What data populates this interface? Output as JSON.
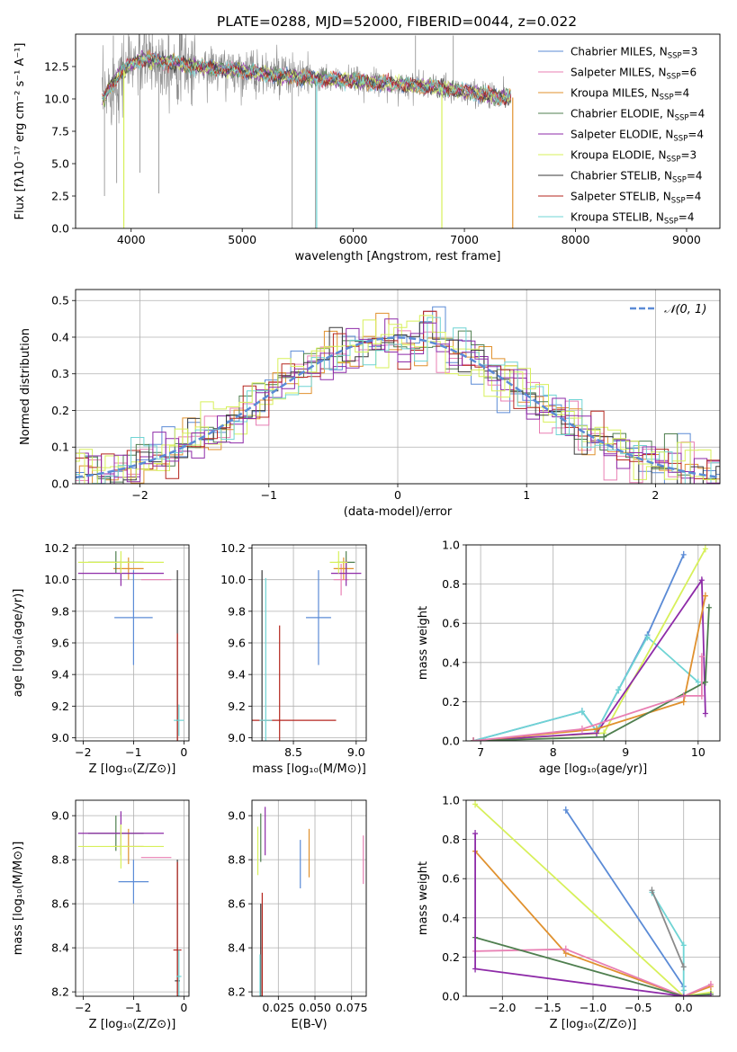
{
  "title": "PLATE=0288, MJD=52000, FIBERID=0044, z=0.022",
  "colors": {
    "chabrier_miles": "#5b8bd6",
    "salpeter_miles": "#e87fb3",
    "kroupa_miles": "#e0912e",
    "chabrier_elodie": "#4f7f4f",
    "salpeter_elodie": "#8e2ba8",
    "kroupa_elodie": "#d7f05a",
    "chabrier_stelib": "#3a3a3a",
    "salpeter_stelib": "#b5261e",
    "kroupa_stelib": "#6fd4d4",
    "data_gray": "#8a8a8a",
    "grid": "#b0b0b0"
  },
  "chart_data": [
    {
      "type": "line",
      "panel": "spectrum",
      "xlabel": "wavelength [Angstrom, rest frame]",
      "ylabel": "Flux [fλ10⁻¹⁷ erg cm⁻² s⁻¹ A⁻¹]",
      "xlim": [
        3500,
        9300
      ],
      "ylim": [
        0,
        15
      ],
      "xticks": [
        "4000",
        "5000",
        "6000",
        "7000",
        "8000",
        "9000"
      ],
      "yticks": [
        "0.0",
        "2.5",
        "5.0",
        "7.5",
        "10.0",
        "12.5"
      ],
      "legend_position": "top-right",
      "legend": [
        {
          "prefix": "Chabrier MILES, N",
          "sub": "SSP",
          "suffix": "=3",
          "color": "#5b8bd6"
        },
        {
          "prefix": "Salpeter MILES, N",
          "sub": "SSP",
          "suffix": "=6",
          "color": "#e87fb3"
        },
        {
          "prefix": "Kroupa MILES, N",
          "sub": "SSP",
          "suffix": "=4",
          "color": "#e0912e"
        },
        {
          "prefix": "Chabrier ELODIE, N",
          "sub": "SSP",
          "suffix": "=4",
          "color": "#4f7f4f"
        },
        {
          "prefix": "Salpeter ELODIE, N",
          "sub": "SSP",
          "suffix": "=4",
          "color": "#8e2ba8"
        },
        {
          "prefix": "Kroupa ELODIE, N",
          "sub": "SSP",
          "suffix": "=3",
          "color": "#d7f05a"
        },
        {
          "prefix": "Chabrier STELIB, N",
          "sub": "SSP",
          "suffix": "=4",
          "color": "#3a3a3a"
        },
        {
          "prefix": "Salpeter STELIB, N",
          "sub": "SSP",
          "suffix": "=4",
          "color": "#b5261e"
        },
        {
          "prefix": "Kroupa STELIB, N",
          "sub": "SSP",
          "suffix": "=4",
          "color": "#6fd4d4"
        }
      ],
      "model_curve": {
        "x": [
          3750,
          3800,
          3900,
          4000,
          4100,
          4300,
          4500,
          4800,
          5000,
          5300,
          5600,
          6000,
          6300,
          6600,
          7000,
          7200,
          7430
        ],
        "y": [
          9.8,
          10.8,
          12.0,
          12.7,
          13.1,
          12.9,
          12.6,
          12.3,
          12.2,
          11.8,
          11.6,
          11.4,
          11.2,
          11.0,
          10.6,
          10.3,
          10.1
        ]
      },
      "model_dips": [
        {
          "x": 3934,
          "y": 0.0,
          "series": "Kroupa ELODIE"
        },
        {
          "x": 6797,
          "y": 0.0,
          "series": "Kroupa ELODIE"
        },
        {
          "x": 7435,
          "y": 0.0,
          "series": "Salpeter MILES"
        },
        {
          "x": 5670,
          "y": 0.0,
          "series": "Kroupa STELIB"
        }
      ],
      "data_spikes": [
        {
          "x": 3760,
          "y": 2.5
        },
        {
          "x": 3840,
          "y": 14.9
        },
        {
          "x": 3870,
          "y": 3.5
        },
        {
          "x": 4080,
          "y": 4.3
        },
        {
          "x": 4250,
          "y": 2.7
        },
        {
          "x": 5450,
          "y": 0.0
        },
        {
          "x": 5660,
          "y": 0.0
        },
        {
          "x": 6560,
          "y": 14.9
        },
        {
          "x": 6900,
          "y": 14.9
        },
        {
          "x": 4340,
          "y": 14.9
        }
      ]
    },
    {
      "type": "bar",
      "panel": "residual-histogram",
      "xlabel": "(data-model)/error",
      "ylabel": "Normed distribution",
      "xlim": [
        -2.5,
        2.5
      ],
      "ylim": [
        0,
        0.53
      ],
      "xticks": [
        "−2",
        "−1",
        "0",
        "1",
        "2"
      ],
      "yticks": [
        "0.0",
        "0.1",
        "0.2",
        "0.3",
        "0.4",
        "0.5"
      ],
      "legend": [
        {
          "label": "𝒩(0, 1)",
          "color": "#5b8bd6",
          "style": "dashed"
        }
      ],
      "legend_position": "top-right",
      "bin_width": 0.1,
      "gaussian": {
        "mean": 0,
        "sigma": 1
      }
    },
    {
      "type": "scatter",
      "panel": "age-vs-Z",
      "xlabel": "Z [log₁₀(Z/Z⊙)]",
      "ylabel": "age  [log₁₀(age/yr)]",
      "xlim": [
        -2.15,
        0.1
      ],
      "ylim": [
        8.98,
        10.22
      ],
      "xticks": [
        "−2",
        "−1",
        "0"
      ],
      "yticks": [
        "9.0",
        "9.2",
        "9.4",
        "9.6",
        "9.8",
        "10.0",
        "10.2"
      ],
      "points": [
        {
          "x": -1.0,
          "y": 9.76,
          "xerr": 0.38,
          "yerr": 0.3,
          "color": "#5b8bd6"
        },
        {
          "x": -0.55,
          "y": 10.0,
          "xerr": 0.3,
          "yerr": 0.0,
          "color": "#e87fb3"
        },
        {
          "x": -1.1,
          "y": 10.07,
          "xerr": 0.3,
          "yerr": 0.07,
          "color": "#e0912e"
        },
        {
          "x": -1.35,
          "y": 10.11,
          "xerr": 0.55,
          "yerr": 0.07,
          "color": "#4f7f4f"
        },
        {
          "x": -1.25,
          "y": 10.04,
          "xerr": 0.85,
          "yerr": 0.08,
          "color": "#8e2ba8"
        },
        {
          "x": -1.25,
          "y": 10.11,
          "xerr": 0.85,
          "yerr": 0.07,
          "color": "#d7f05a"
        },
        {
          "x": -0.13,
          "y": 9.11,
          "xerr": 0.02,
          "yerr": 0.95,
          "color": "#3a3a3a"
        },
        {
          "x": -0.13,
          "y": 9.11,
          "xerr": 0.02,
          "yerr": 0.55,
          "color": "#b5261e"
        },
        {
          "x": -0.1,
          "y": 9.11,
          "xerr": 0.1,
          "yerr": 0.1,
          "color": "#6fd4d4"
        }
      ]
    },
    {
      "type": "scatter",
      "panel": "age-vs-mass",
      "xlabel": "mass [log₁₀(M/M⊙)]",
      "ylabel": "",
      "xlim": [
        8.17,
        9.08
      ],
      "ylim": [
        8.98,
        10.22
      ],
      "xticks": [
        "8.5",
        "9.0"
      ],
      "yticks": [
        "9.0",
        "9.2",
        "9.4",
        "9.6",
        "9.8",
        "10.0",
        "10.2"
      ],
      "points": [
        {
          "x": 8.7,
          "y": 9.76,
          "xerr": 0.1,
          "yerr": 0.3,
          "color": "#5b8bd6"
        },
        {
          "x": 8.88,
          "y": 10.0,
          "xerr": 0.06,
          "yerr": 0.1,
          "color": "#e87fb3"
        },
        {
          "x": 8.9,
          "y": 10.07,
          "xerr": 0.08,
          "yerr": 0.07,
          "color": "#e0912e"
        },
        {
          "x": 8.92,
          "y": 10.11,
          "xerr": 0.07,
          "yerr": 0.07,
          "color": "#4f7f4f"
        },
        {
          "x": 8.92,
          "y": 10.04,
          "xerr": 0.12,
          "yerr": 0.08,
          "color": "#8e2ba8"
        },
        {
          "x": 8.86,
          "y": 10.11,
          "xerr": 0.07,
          "yerr": 0.07,
          "color": "#d7f05a"
        },
        {
          "x": 8.25,
          "y": 9.11,
          "xerr": 0.0,
          "yerr": 0.95,
          "color": "#3a3a3a"
        },
        {
          "x": 8.39,
          "y": 9.11,
          "xerr": 0.45,
          "yerr": 0.6,
          "color": "#b5261e"
        },
        {
          "x": 8.28,
          "y": 9.11,
          "xerr": 0.05,
          "yerr": 0.9,
          "color": "#6fd4d4"
        }
      ]
    },
    {
      "type": "line",
      "panel": "mass-weight-vs-age",
      "xlabel": "age  [log₁₀(age/yr)]",
      "ylabel": "mass weight",
      "xlim": [
        6.8,
        10.3
      ],
      "ylim": [
        0,
        1.0
      ],
      "xticks": [
        "7",
        "8",
        "9",
        "10"
      ],
      "yticks": [
        "0.0",
        "0.2",
        "0.4",
        "0.6",
        "0.8",
        "1.0"
      ],
      "series": [
        {
          "color": "#5b8bd6",
          "x": [
            6.9,
            8.4,
            8.6,
            8.9,
            9.3,
            9.8
          ],
          "y": [
            0.0,
            0.15,
            0.05,
            0.26,
            0.54,
            0.95
          ]
        },
        {
          "color": "#6fd4d4",
          "x": [
            6.9,
            8.4,
            8.6,
            8.9,
            9.3,
            10.0
          ],
          "y": [
            0.0,
            0.15,
            0.05,
            0.26,
            0.53,
            0.3
          ]
        },
        {
          "color": "#d7f05a",
          "x": [
            6.9,
            8.7,
            10.1
          ],
          "y": [
            0.0,
            0.04,
            0.98
          ]
        },
        {
          "color": "#8e2ba8",
          "x": [
            6.9,
            8.6,
            10.05,
            10.1
          ],
          "y": [
            0.0,
            0.04,
            0.82,
            0.14
          ]
        },
        {
          "color": "#e0912e",
          "x": [
            6.9,
            8.6,
            9.8,
            10.1
          ],
          "y": [
            0.0,
            0.06,
            0.2,
            0.74
          ]
        },
        {
          "color": "#4f7f4f",
          "x": [
            6.9,
            8.7,
            10.1,
            10.15
          ],
          "y": [
            0.0,
            0.02,
            0.3,
            0.68
          ]
        },
        {
          "color": "#e87fb3",
          "x": [
            6.9,
            8.4,
            9.8,
            10.05,
            10.05
          ],
          "y": [
            0.0,
            0.06,
            0.23,
            0.23,
            0.43
          ]
        }
      ]
    },
    {
      "type": "scatter",
      "panel": "mass-vs-Z",
      "xlabel": "Z [log₁₀(Z/Z⊙)]",
      "ylabel": "mass [log₁₀(M/M⊙)]",
      "xlim": [
        -2.15,
        0.1
      ],
      "ylim": [
        8.18,
        9.07
      ],
      "xticks": [
        "−2",
        "−1",
        "0"
      ],
      "yticks": [
        "8.2",
        "8.4",
        "8.6",
        "8.8",
        "9.0"
      ],
      "points": [
        {
          "x": -1.0,
          "y": 8.7,
          "xerr": 0.3,
          "yerr": 0.1,
          "color": "#5b8bd6"
        },
        {
          "x": -0.55,
          "y": 8.81,
          "xerr": 0.3,
          "yerr": 0.0,
          "color": "#e87fb3"
        },
        {
          "x": -1.1,
          "y": 8.86,
          "xerr": 0.3,
          "yerr": 0.08,
          "color": "#e0912e"
        },
        {
          "x": -1.35,
          "y": 8.92,
          "xerr": 0.55,
          "yerr": 0.08,
          "color": "#4f7f4f"
        },
        {
          "x": -1.25,
          "y": 8.92,
          "xerr": 0.85,
          "yerr": 0.1,
          "color": "#8e2ba8"
        },
        {
          "x": -1.25,
          "y": 8.86,
          "xerr": 0.85,
          "yerr": 0.1,
          "color": "#d7f05a"
        },
        {
          "x": -0.13,
          "y": 8.25,
          "xerr": 0.05,
          "yerr": 0.55,
          "color": "#3a3a3a"
        },
        {
          "x": -0.13,
          "y": 8.39,
          "xerr": 0.08,
          "yerr": 0.4,
          "color": "#b5261e"
        },
        {
          "x": -0.1,
          "y": 8.27,
          "xerr": 0.05,
          "yerr": 0.12,
          "color": "#6fd4d4"
        }
      ]
    },
    {
      "type": "scatter",
      "panel": "mass-vs-EBV",
      "xlabel": "E(B-V)",
      "ylabel": "",
      "xlim": [
        0.007,
        0.085
      ],
      "ylim": [
        8.18,
        9.07
      ],
      "xticks": [
        "0.025",
        "0.050",
        "0.075"
      ],
      "yticks": [
        "8.2",
        "8.4",
        "8.6",
        "8.8",
        "9.0"
      ],
      "points": [
        {
          "x": 0.04,
          "y": 8.78,
          "yerr": 0.11,
          "color": "#5b8bd6"
        },
        {
          "x": 0.083,
          "y": 8.8,
          "yerr": 0.11,
          "color": "#e87fb3"
        },
        {
          "x": 0.046,
          "y": 8.83,
          "yerr": 0.11,
          "color": "#e0912e"
        },
        {
          "x": 0.013,
          "y": 8.9,
          "yerr": 0.11,
          "color": "#4f7f4f"
        },
        {
          "x": 0.016,
          "y": 8.93,
          "yerr": 0.11,
          "color": "#8e2ba8"
        },
        {
          "x": 0.011,
          "y": 8.84,
          "yerr": 0.11,
          "color": "#d7f05a"
        },
        {
          "x": 0.013,
          "y": 8.25,
          "yerr": 0.35,
          "color": "#3a3a3a"
        },
        {
          "x": 0.014,
          "y": 8.4,
          "yerr": 0.25,
          "color": "#b5261e"
        },
        {
          "x": 0.0125,
          "y": 8.27,
          "yerr": 0.1,
          "color": "#6fd4d4"
        }
      ]
    },
    {
      "type": "line",
      "panel": "mass-weight-vs-Z",
      "xlabel": "Z [log₁₀(Z/Z⊙)]",
      "ylabel": "mass weight",
      "xlim": [
        -2.4,
        0.4
      ],
      "ylim": [
        0,
        1.0
      ],
      "xticks": [
        "−2.0",
        "−1.5",
        "−1.0",
        "−0.5",
        "0.0"
      ],
      "yticks": [
        "0.0",
        "0.2",
        "0.4",
        "0.6",
        "0.8",
        "1.0"
      ],
      "series": [
        {
          "color": "#5b8bd6",
          "x": [
            -1.3,
            0.0,
            0.0
          ],
          "y": [
            0.95,
            0.05,
            0.0
          ]
        },
        {
          "color": "#d7f05a",
          "x": [
            -2.3,
            0.0,
            0.3
          ],
          "y": [
            0.98,
            0.0,
            0.02
          ]
        },
        {
          "color": "#e0912e",
          "x": [
            -2.3,
            -1.3,
            0.0,
            0.3
          ],
          "y": [
            0.74,
            0.22,
            0.0,
            0.05
          ]
        },
        {
          "color": "#e87fb3",
          "x": [
            -2.3,
            -1.3,
            0.0,
            0.3
          ],
          "y": [
            0.23,
            0.24,
            0.0,
            0.06
          ]
        },
        {
          "color": "#4f7f4f",
          "x": [
            -2.3,
            0.0,
            0.3
          ],
          "y": [
            0.3,
            0.0,
            0.01
          ]
        },
        {
          "color": "#8e2ba8",
          "x": [
            -2.3,
            -2.3,
            0.0,
            0.3
          ],
          "y": [
            0.83,
            0.14,
            0.0,
            0.0
          ]
        },
        {
          "color": "#6fd4d4",
          "x": [
            -0.35,
            0.0,
            0.0
          ],
          "y": [
            0.53,
            0.26,
            0.03
          ]
        },
        {
          "color": "#8a8a8a",
          "x": [
            -0.35,
            0.0
          ],
          "y": [
            0.54,
            0.15
          ]
        }
      ]
    }
  ]
}
